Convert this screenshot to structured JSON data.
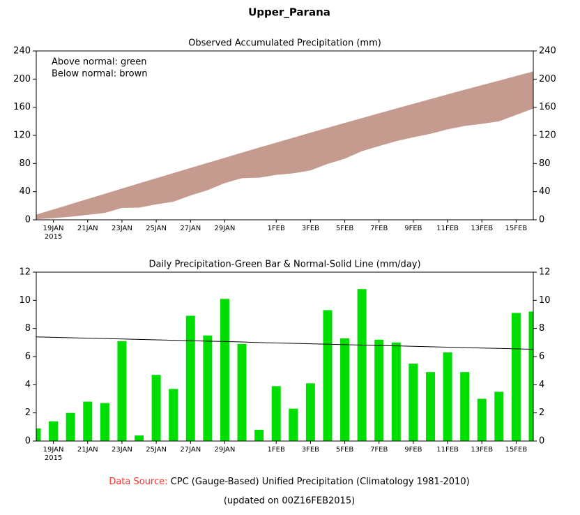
{
  "title": "Upper_Parana",
  "chart_data": [
    {
      "type": "area",
      "title": "Observed Accumulated Precipitation (mm)",
      "annotations": [
        "Above normal: green",
        "Below normal: brown"
      ],
      "categories": [
        null,
        "19JAN",
        null,
        "21JAN",
        null,
        "23JAN",
        null,
        "25JAN",
        null,
        "27JAN",
        null,
        "29JAN",
        null,
        null,
        "1FEB",
        null,
        "3FEB",
        null,
        "5FEB",
        null,
        "7FEB",
        null,
        "9FEB",
        null,
        "11FEB",
        null,
        "13FEB",
        null,
        "15FEB",
        null
      ],
      "year_label": "2015",
      "ylim": [
        0,
        240
      ],
      "yticks": [
        0,
        40,
        80,
        120,
        160,
        200,
        240
      ],
      "y2lim": [
        0,
        240
      ],
      "y2ticks": [
        0,
        40,
        80,
        120,
        160,
        200,
        240
      ],
      "series": [
        {
          "color": "#c49b8e",
          "values": [
            7.4,
            14.8,
            22.2,
            29.6,
            37.0,
            44.4,
            51.8,
            59.1,
            66.4,
            73.7,
            81.0,
            88.2,
            95.4,
            102.6,
            109.7,
            116.8,
            123.8,
            130.8,
            137.7,
            144.6,
            151.4,
            158.2,
            164.9,
            171.6,
            178.3,
            184.9,
            191.4,
            197.9,
            204.4,
            210.9
          ]
        },
        {
          "color": "#ffffff",
          "values": [
            0.9,
            2.3,
            4.3,
            7.1,
            9.8,
            16.9,
            17.3,
            22.0,
            25.7,
            34.6,
            42.1,
            52.2,
            59.1,
            59.9,
            63.8,
            66.1,
            70.2,
            79.5,
            86.8,
            97.6,
            104.8,
            111.8,
            117.3,
            122.2,
            128.5,
            133.4,
            136.4,
            139.9,
            149.0,
            158.2
          ]
        }
      ]
    },
    {
      "type": "bar",
      "title": "Daily Precipitation-Green Bar & Normal-Solid Line (mm/day)",
      "categories": [
        null,
        "19JAN",
        null,
        "21JAN",
        null,
        "23JAN",
        null,
        "25JAN",
        null,
        "27JAN",
        null,
        "29JAN",
        null,
        null,
        "1FEB",
        null,
        "3FEB",
        null,
        "5FEB",
        null,
        "7FEB",
        null,
        "9FEB",
        null,
        "11FEB",
        null,
        "13FEB",
        null,
        "15FEB",
        null
      ],
      "year_label": "2015",
      "ylim": [
        0,
        12
      ],
      "yticks": [
        0,
        2,
        4,
        6,
        8,
        10,
        12
      ],
      "y2lim": [
        0,
        12
      ],
      "y2ticks": [
        0,
        2,
        4,
        6,
        8,
        10,
        12
      ],
      "series": [
        {
          "type": "bar",
          "color": "#00dd00",
          "values": [
            0.9,
            1.4,
            2.0,
            2.8,
            2.7,
            7.1,
            0.4,
            4.7,
            3.7,
            8.9,
            7.5,
            10.1,
            6.9,
            0.8,
            3.9,
            2.3,
            4.1,
            9.3,
            7.3,
            10.8,
            7.2,
            7.0,
            5.5,
            4.9,
            6.3,
            4.9,
            3.0,
            3.5,
            9.1,
            9.2
          ]
        },
        {
          "type": "line",
          "color": "#000000",
          "values": [
            7.4,
            7.37,
            7.34,
            7.31,
            7.28,
            7.25,
            7.22,
            7.19,
            7.16,
            7.13,
            7.1,
            7.07,
            7.04,
            7.0,
            6.97,
            6.94,
            6.91,
            6.88,
            6.85,
            6.82,
            6.79,
            6.76,
            6.73,
            6.7,
            6.67,
            6.64,
            6.61,
            6.58,
            6.55,
            6.52
          ]
        }
      ]
    }
  ],
  "footer": {
    "source_label": "Data Source:",
    "source_text": "CPC (Gauge-Based) Unified Precipitation (Climatology 1981-2010)",
    "updated": "(updated on 00Z16FEB2015)"
  }
}
